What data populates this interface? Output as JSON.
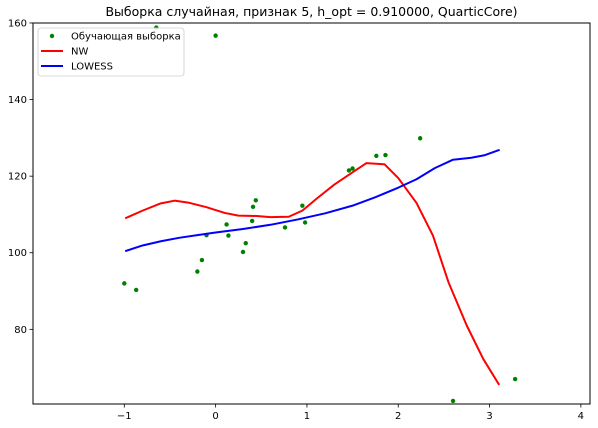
{
  "chart_data": {
    "type": "scatter",
    "title": "Выборка случайная, признак 5, h_opt = 0.910000, QuarticCore)",
    "xlabel": "",
    "ylabel": "",
    "xlim": [
      -2.0,
      4.1
    ],
    "ylim": [
      60.5,
      160
    ],
    "x_ticks": [
      -1,
      0,
      1,
      2,
      3,
      4
    ],
    "y_ticks": [
      80,
      100,
      120,
      140,
      160
    ],
    "grid": false,
    "legend_position": "top-left",
    "series": [
      {
        "name": "Обучающая выборка",
        "kind": "scatter",
        "color": "#008000",
        "points": [
          {
            "x": -1.0,
            "y": 92.0
          },
          {
            "x": -0.87,
            "y": 90.3
          },
          {
            "x": -0.65,
            "y": 158.8
          },
          {
            "x": 0.0,
            "y": 156.7
          },
          {
            "x": -0.2,
            "y": 95.1
          },
          {
            "x": -0.15,
            "y": 98.1
          },
          {
            "x": -0.1,
            "y": 104.6
          },
          {
            "x": 0.12,
            "y": 107.4
          },
          {
            "x": 0.14,
            "y": 104.5
          },
          {
            "x": 0.3,
            "y": 100.2
          },
          {
            "x": 0.33,
            "y": 102.5
          },
          {
            "x": 0.4,
            "y": 108.3
          },
          {
            "x": 0.41,
            "y": 112.0
          },
          {
            "x": 0.44,
            "y": 113.7
          },
          {
            "x": 0.76,
            "y": 106.6
          },
          {
            "x": 0.95,
            "y": 112.3
          },
          {
            "x": 0.98,
            "y": 107.9
          },
          {
            "x": 1.46,
            "y": 121.5
          },
          {
            "x": 1.5,
            "y": 122.0
          },
          {
            "x": 1.76,
            "y": 125.3
          },
          {
            "x": 1.86,
            "y": 125.5
          },
          {
            "x": 2.24,
            "y": 129.9
          },
          {
            "x": 2.6,
            "y": 61.3
          },
          {
            "x": 3.28,
            "y": 67.0
          }
        ]
      },
      {
        "name": "NW",
        "kind": "line",
        "color": "#ff0000",
        "points": [
          {
            "x": -0.98,
            "y": 109.1
          },
          {
            "x": -0.8,
            "y": 111.0
          },
          {
            "x": -0.6,
            "y": 112.9
          },
          {
            "x": -0.45,
            "y": 113.6
          },
          {
            "x": -0.3,
            "y": 113.1
          },
          {
            "x": -0.1,
            "y": 111.9
          },
          {
            "x": 0.1,
            "y": 110.4
          },
          {
            "x": 0.25,
            "y": 109.7
          },
          {
            "x": 0.45,
            "y": 109.6
          },
          {
            "x": 0.6,
            "y": 109.3
          },
          {
            "x": 0.8,
            "y": 109.4
          },
          {
            "x": 0.95,
            "y": 111.0
          },
          {
            "x": 1.1,
            "y": 114.0
          },
          {
            "x": 1.3,
            "y": 117.8
          },
          {
            "x": 1.5,
            "y": 121.0
          },
          {
            "x": 1.65,
            "y": 123.4
          },
          {
            "x": 1.85,
            "y": 123.1
          },
          {
            "x": 2.0,
            "y": 119.5
          },
          {
            "x": 2.2,
            "y": 113.0
          },
          {
            "x": 2.38,
            "y": 104.5
          },
          {
            "x": 2.55,
            "y": 92.3
          },
          {
            "x": 2.75,
            "y": 81.0
          },
          {
            "x": 2.93,
            "y": 72.3
          },
          {
            "x": 3.1,
            "y": 65.7
          }
        ]
      },
      {
        "name": "LOWESS",
        "kind": "line",
        "color": "#0000ff",
        "points": [
          {
            "x": -0.98,
            "y": 100.5
          },
          {
            "x": -0.8,
            "y": 101.9
          },
          {
            "x": -0.6,
            "y": 103.0
          },
          {
            "x": -0.4,
            "y": 103.9
          },
          {
            "x": -0.2,
            "y": 104.6
          },
          {
            "x": 0.0,
            "y": 105.3
          },
          {
            "x": 0.3,
            "y": 106.2
          },
          {
            "x": 0.6,
            "y": 107.3
          },
          {
            "x": 0.9,
            "y": 108.7
          },
          {
            "x": 1.2,
            "y": 110.3
          },
          {
            "x": 1.5,
            "y": 112.3
          },
          {
            "x": 1.75,
            "y": 114.5
          },
          {
            "x": 2.0,
            "y": 117.0
          },
          {
            "x": 2.2,
            "y": 119.2
          },
          {
            "x": 2.4,
            "y": 122.1
          },
          {
            "x": 2.6,
            "y": 124.3
          },
          {
            "x": 2.8,
            "y": 124.8
          },
          {
            "x": 2.95,
            "y": 125.5
          },
          {
            "x": 3.1,
            "y": 126.8
          }
        ]
      }
    ]
  }
}
